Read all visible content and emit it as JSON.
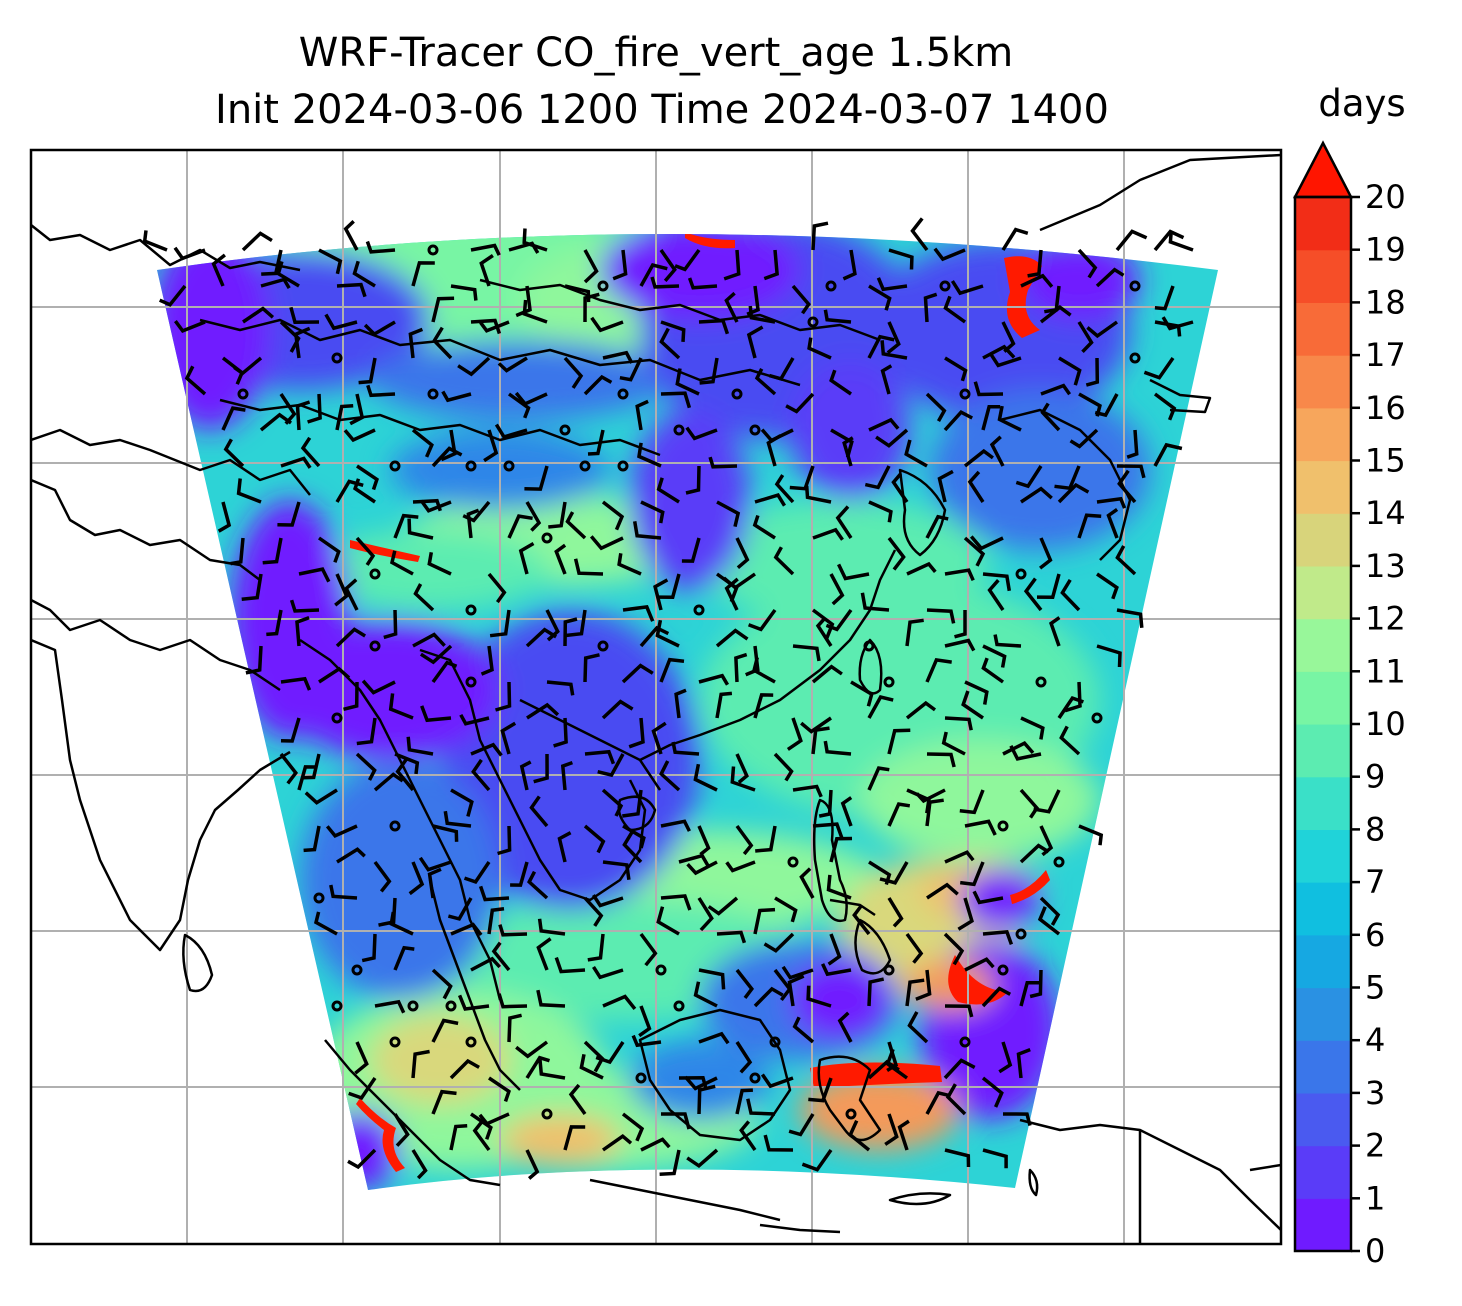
{
  "figure": {
    "title_line1": "WRF-Tracer CO_fire_vert_age 1.5km",
    "title_line2": "Init 2024-03-06 1200 Time 2024-03-07 1400"
  },
  "colorbar": {
    "unit": "days",
    "ticks": [
      "0",
      "1",
      "2",
      "3",
      "4",
      "5",
      "6",
      "7",
      "8",
      "9",
      "10",
      "11",
      "12",
      "13",
      "14",
      "15",
      "16",
      "17",
      "18",
      "19",
      "20"
    ],
    "colors": [
      "#6f1bff",
      "#5a3cf8",
      "#4a5af0",
      "#3a76ea",
      "#2a91e3",
      "#16a8e2",
      "#10bfe0",
      "#20d3d9",
      "#3ae0c8",
      "#5cecb1",
      "#78f5a4",
      "#98f79a",
      "#c0ea8a",
      "#d8d47b",
      "#f0c06c",
      "#f7a65c",
      "#f8884a",
      "#f86b38",
      "#f64e28",
      "#f22d17"
    ],
    "extend": "max",
    "extend_color": "#ff1500"
  },
  "map": {
    "colors": {
      "purple": "#6f1bff",
      "deep_blue": "#4a4cf2",
      "blue": "#2f86e8",
      "cyan": "#2dd3d6",
      "aqua": "#5cecb1",
      "green": "#8ff79c",
      "yellow": "#d9d87c",
      "orange": "#f49a5a",
      "red": "#ff1a00",
      "grid": "#b0b0b0",
      "coast": "#000000"
    }
  }
}
